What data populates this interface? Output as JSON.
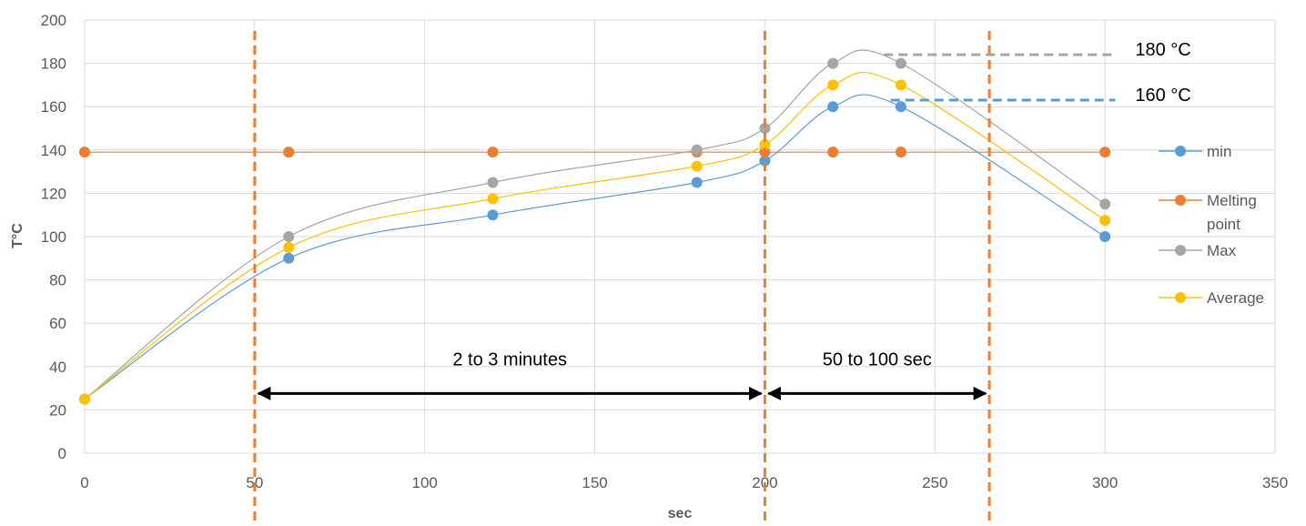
{
  "chart_data": {
    "type": "scatter",
    "xlabel": "sec",
    "ylabel": "T°C",
    "xlim": [
      0,
      350
    ],
    "ylim": [
      0,
      200
    ],
    "xticks": [
      0,
      50,
      100,
      150,
      200,
      250,
      300,
      350
    ],
    "yticks": [
      0,
      20,
      40,
      60,
      80,
      100,
      120,
      140,
      160,
      180,
      200
    ],
    "grid": true,
    "smoothed_lines": true,
    "legend_position": "right",
    "series": [
      {
        "name": "min",
        "color": "#5b9bd5",
        "x": [
          0,
          60,
          120,
          180,
          200,
          220,
          240,
          300
        ],
        "y": [
          25,
          90,
          110,
          125,
          135,
          160,
          160,
          100
        ]
      },
      {
        "name": "Melting point",
        "color": "#ed7d31",
        "x": [
          0,
          60,
          120,
          180,
          200,
          220,
          240,
          300
        ],
        "y": [
          139,
          139,
          139,
          139,
          139,
          139,
          139,
          139
        ]
      },
      {
        "name": "Max",
        "color": "#a5a5a5",
        "x": [
          0,
          60,
          120,
          180,
          200,
          220,
          240,
          300
        ],
        "y": [
          25,
          100,
          125,
          140,
          150,
          180,
          180,
          115
        ]
      },
      {
        "name": "Average",
        "color": "#ffc000",
        "x": [
          0,
          60,
          120,
          180,
          200,
          220,
          240,
          300
        ],
        "y": [
          25,
          95,
          117.5,
          132.5,
          142.5,
          170,
          170,
          107.5
        ]
      }
    ],
    "annotations": {
      "vertical_markers": {
        "color": "#ed7d31",
        "x": [
          50,
          200,
          266
        ]
      },
      "ranges": [
        {
          "label": "2 to 3 minutes",
          "x_from": 50,
          "x_to": 200,
          "y": 28
        },
        {
          "label": "50 to 100 sec",
          "x_from": 200,
          "x_to": 266,
          "y": 28
        }
      ],
      "thresholds": [
        {
          "label": "180 °C",
          "value": 184,
          "color": "#a5a5a5",
          "x_from": 235,
          "x_to": 303
        },
        {
          "label": "160 °C",
          "value": 163,
          "color": "#5b9bd5",
          "x_from": 237,
          "x_to": 303
        }
      ]
    }
  }
}
